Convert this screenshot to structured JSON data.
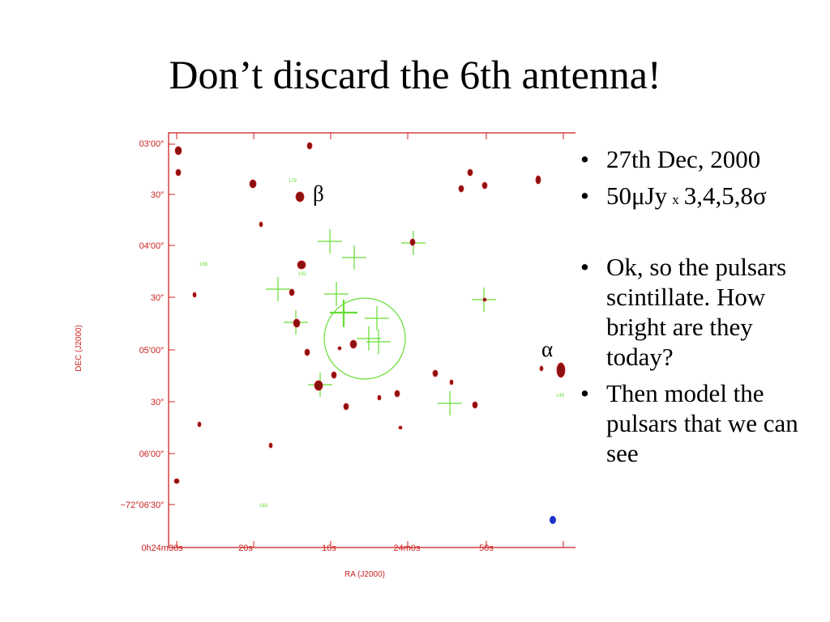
{
  "slide": {
    "title": "Don’t discard the 6th antenna!"
  },
  "figure": {
    "y_axis_label": "DEC (J2000)",
    "x_axis_label": "RA (J2000)",
    "y_ticks": [
      "03′00″",
      "30″",
      "04′00″",
      "30″",
      "05′00″",
      "30″",
      "06′00″",
      "−72°06′30″"
    ],
    "x_ticks": [
      "0h24m30s",
      "20s",
      "10s",
      "24m0s",
      "50s"
    ],
    "pulsar_labels": {
      "beta": "β",
      "alpha": "α"
    },
    "source_tags": [
      "178",
      "188",
      "192",
      "169",
      "148"
    ],
    "colors": {
      "frame": "#cc2222",
      "contours": "#8b1010",
      "markers": "#66dd33",
      "beam": "#1a33cc"
    }
  },
  "bullets": {
    "b1": "27th Dec, 2000",
    "b2_pre": "50μJy",
    "b2_x": "x",
    "b2_post": "3,4,5,8σ",
    "b3": "Ok, so the pulsars scintillate. How bright are they today?",
    "b4": "Then model the pulsars that we can see",
    "dot": "•"
  }
}
